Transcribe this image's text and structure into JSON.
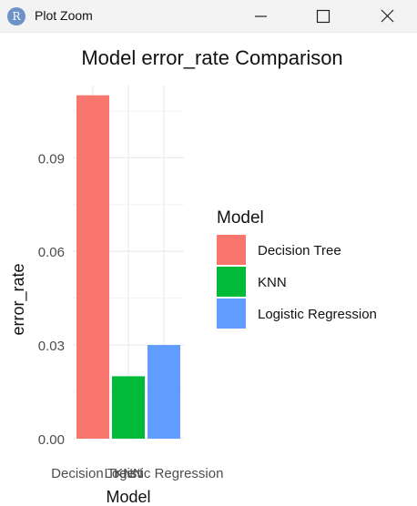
{
  "window": {
    "icon_label": "R",
    "title": "Plot Zoom",
    "buttons": [
      "minimize",
      "maximize",
      "close"
    ]
  },
  "chart_data": {
    "type": "bar",
    "title": "Model error_rate Comparison",
    "xlabel": "Model",
    "ylabel": "error_rate",
    "categories": [
      "Decision Tree",
      "KNN",
      "Logistic Regression"
    ],
    "values": [
      0.11,
      0.02,
      0.03
    ],
    "colors": [
      "#F8766D",
      "#00BA38",
      "#619CFF"
    ],
    "ylim": [
      0,
      0.1
    ],
    "yticks": [
      "0.00",
      "0.03",
      "0.06",
      "0.09"
    ],
    "grid": true,
    "legend": {
      "title": "Model",
      "position": "right",
      "entries": [
        "Decision Tree",
        "KNN",
        "Logistic Regression"
      ]
    }
  }
}
